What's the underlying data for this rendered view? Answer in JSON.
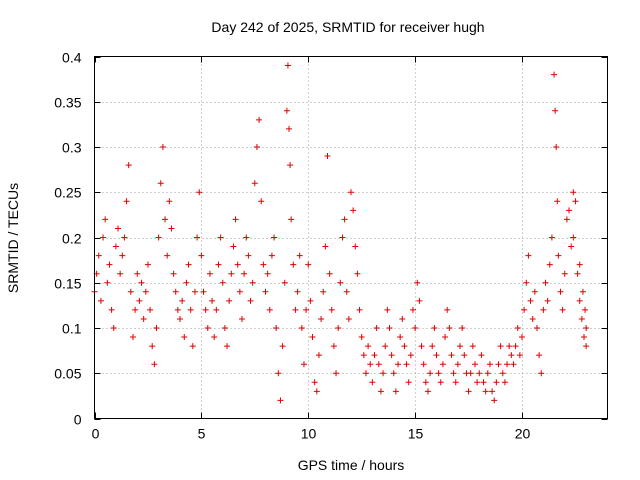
{
  "chart_data": {
    "type": "scatter",
    "title": "Day 242 of 2025, SRMTID for receiver hugh",
    "xlabel": "GPS time / hours",
    "ylabel": "SRMTID / TECUs",
    "xlim": [
      0,
      24
    ],
    "ylim": [
      0,
      0.4
    ],
    "xticks": [
      0,
      5,
      10,
      15,
      20
    ],
    "xtick_labels": [
      "0",
      "5",
      "10",
      "15",
      "20"
    ],
    "yticks": [
      0,
      0.05,
      0.1,
      0.15,
      0.2,
      0.25,
      0.3,
      0.35,
      0.4
    ],
    "ytick_labels": [
      "0",
      "0.05",
      "0.1",
      "0.15",
      "0.2",
      "0.25",
      "0.3",
      "0.35",
      "0.4"
    ],
    "grid": true,
    "marker": "plus",
    "color": "#e00000",
    "series": [
      {
        "name": "SRMTID",
        "points": [
          [
            0.0,
            0.14
          ],
          [
            0.1,
            0.16
          ],
          [
            0.2,
            0.18
          ],
          [
            0.3,
            0.13
          ],
          [
            0.4,
            0.2
          ],
          [
            0.5,
            0.22
          ],
          [
            0.6,
            0.15
          ],
          [
            0.7,
            0.17
          ],
          [
            0.8,
            0.12
          ],
          [
            0.9,
            0.1
          ],
          [
            1.0,
            0.19
          ],
          [
            1.1,
            0.21
          ],
          [
            1.2,
            0.16
          ],
          [
            1.3,
            0.18
          ],
          [
            1.4,
            0.2
          ],
          [
            1.5,
            0.24
          ],
          [
            1.6,
            0.28
          ],
          [
            1.7,
            0.14
          ],
          [
            1.8,
            0.09
          ],
          [
            1.9,
            0.12
          ],
          [
            2.0,
            0.16
          ],
          [
            2.1,
            0.13
          ],
          [
            2.2,
            0.15
          ],
          [
            2.3,
            0.11
          ],
          [
            2.4,
            0.14
          ],
          [
            2.5,
            0.17
          ],
          [
            2.6,
            0.12
          ],
          [
            2.7,
            0.08
          ],
          [
            2.8,
            0.06
          ],
          [
            2.9,
            0.1
          ],
          [
            3.0,
            0.2
          ],
          [
            3.1,
            0.26
          ],
          [
            3.2,
            0.3
          ],
          [
            3.3,
            0.22
          ],
          [
            3.4,
            0.18
          ],
          [
            3.5,
            0.24
          ],
          [
            3.6,
            0.21
          ],
          [
            3.7,
            0.16
          ],
          [
            3.8,
            0.14
          ],
          [
            3.9,
            0.12
          ],
          [
            4.0,
            0.11
          ],
          [
            4.1,
            0.13
          ],
          [
            4.2,
            0.09
          ],
          [
            4.3,
            0.15
          ],
          [
            4.4,
            0.17
          ],
          [
            4.5,
            0.12
          ],
          [
            4.6,
            0.08
          ],
          [
            4.7,
            0.14
          ],
          [
            4.8,
            0.2
          ],
          [
            4.9,
            0.25
          ],
          [
            5.0,
            0.18
          ],
          [
            5.1,
            0.14
          ],
          [
            5.2,
            0.12
          ],
          [
            5.3,
            0.1
          ],
          [
            5.4,
            0.16
          ],
          [
            5.5,
            0.13
          ],
          [
            5.6,
            0.09
          ],
          [
            5.7,
            0.12
          ],
          [
            5.8,
            0.17
          ],
          [
            5.9,
            0.2
          ],
          [
            6.0,
            0.15
          ],
          [
            6.1,
            0.1
          ],
          [
            6.2,
            0.08
          ],
          [
            6.3,
            0.13
          ],
          [
            6.4,
            0.16
          ],
          [
            6.5,
            0.19
          ],
          [
            6.6,
            0.22
          ],
          [
            6.7,
            0.17
          ],
          [
            6.8,
            0.14
          ],
          [
            6.9,
            0.11
          ],
          [
            7.0,
            0.16
          ],
          [
            7.1,
            0.2
          ],
          [
            7.2,
            0.18
          ],
          [
            7.3,
            0.13
          ],
          [
            7.4,
            0.15
          ],
          [
            7.5,
            0.26
          ],
          [
            7.6,
            0.3
          ],
          [
            7.7,
            0.33
          ],
          [
            7.8,
            0.24
          ],
          [
            7.9,
            0.17
          ],
          [
            8.0,
            0.14
          ],
          [
            8.1,
            0.16
          ],
          [
            8.2,
            0.12
          ],
          [
            8.3,
            0.18
          ],
          [
            8.4,
            0.2
          ],
          [
            8.5,
            0.1
          ],
          [
            8.6,
            0.05
          ],
          [
            8.7,
            0.02
          ],
          [
            8.8,
            0.08
          ],
          [
            8.9,
            0.15
          ],
          [
            9.0,
            0.34
          ],
          [
            9.05,
            0.39
          ],
          [
            9.1,
            0.32
          ],
          [
            9.15,
            0.28
          ],
          [
            9.2,
            0.22
          ],
          [
            9.3,
            0.17
          ],
          [
            9.4,
            0.12
          ],
          [
            9.5,
            0.14
          ],
          [
            9.6,
            0.18
          ],
          [
            9.7,
            0.1
          ],
          [
            9.8,
            0.06
          ],
          [
            9.9,
            0.12
          ],
          [
            10.0,
            0.17
          ],
          [
            10.1,
            0.13
          ],
          [
            10.2,
            0.09
          ],
          [
            10.3,
            0.04
          ],
          [
            10.4,
            0.03
          ],
          [
            10.5,
            0.07
          ],
          [
            10.6,
            0.11
          ],
          [
            10.7,
            0.14
          ],
          [
            10.8,
            0.19
          ],
          [
            10.9,
            0.29
          ],
          [
            11.0,
            0.16
          ],
          [
            11.1,
            0.12
          ],
          [
            11.2,
            0.08
          ],
          [
            11.3,
            0.05
          ],
          [
            11.4,
            0.1
          ],
          [
            11.5,
            0.15
          ],
          [
            11.6,
            0.2
          ],
          [
            11.7,
            0.22
          ],
          [
            11.8,
            0.14
          ],
          [
            11.9,
            0.11
          ],
          [
            12.0,
            0.25
          ],
          [
            12.1,
            0.23
          ],
          [
            12.2,
            0.19
          ],
          [
            12.3,
            0.16
          ],
          [
            12.4,
            0.12
          ],
          [
            12.5,
            0.09
          ],
          [
            12.6,
            0.07
          ],
          [
            12.7,
            0.05
          ],
          [
            12.8,
            0.08
          ],
          [
            12.9,
            0.06
          ],
          [
            13.0,
            0.04
          ],
          [
            13.1,
            0.07
          ],
          [
            13.2,
            0.1
          ],
          [
            13.3,
            0.06
          ],
          [
            13.4,
            0.03
          ],
          [
            13.5,
            0.05
          ],
          [
            13.6,
            0.08
          ],
          [
            13.7,
            0.12
          ],
          [
            13.8,
            0.1
          ],
          [
            13.9,
            0.07
          ],
          [
            14.0,
            0.05
          ],
          [
            14.1,
            0.03
          ],
          [
            14.2,
            0.06
          ],
          [
            14.3,
            0.09
          ],
          [
            14.4,
            0.11
          ],
          [
            14.5,
            0.08
          ],
          [
            14.6,
            0.06
          ],
          [
            14.7,
            0.04
          ],
          [
            14.8,
            0.07
          ],
          [
            14.9,
            0.12
          ],
          [
            15.0,
            0.1
          ],
          [
            15.1,
            0.15
          ],
          [
            15.2,
            0.13
          ],
          [
            15.3,
            0.08
          ],
          [
            15.4,
            0.06
          ],
          [
            15.5,
            0.04
          ],
          [
            15.6,
            0.03
          ],
          [
            15.7,
            0.05
          ],
          [
            15.8,
            0.08
          ],
          [
            15.9,
            0.1
          ],
          [
            16.0,
            0.07
          ],
          [
            16.1,
            0.05
          ],
          [
            16.2,
            0.04
          ],
          [
            16.3,
            0.06
          ],
          [
            16.4,
            0.09
          ],
          [
            16.5,
            0.12
          ],
          [
            16.6,
            0.1
          ],
          [
            16.7,
            0.07
          ],
          [
            16.8,
            0.05
          ],
          [
            16.9,
            0.04
          ],
          [
            17.0,
            0.06
          ],
          [
            17.1,
            0.08
          ],
          [
            17.2,
            0.1
          ],
          [
            17.3,
            0.07
          ],
          [
            17.4,
            0.05
          ],
          [
            17.5,
            0.03
          ],
          [
            17.6,
            0.05
          ],
          [
            17.7,
            0.08
          ],
          [
            17.8,
            0.06
          ],
          [
            17.9,
            0.04
          ],
          [
            18.0,
            0.05
          ],
          [
            18.1,
            0.07
          ],
          [
            18.2,
            0.04
          ],
          [
            18.3,
            0.03
          ],
          [
            18.4,
            0.05
          ],
          [
            18.5,
            0.06
          ],
          [
            18.6,
            0.03
          ],
          [
            18.7,
            0.02
          ],
          [
            18.8,
            0.04
          ],
          [
            18.9,
            0.06
          ],
          [
            19.0,
            0.08
          ],
          [
            19.1,
            0.05
          ],
          [
            19.2,
            0.04
          ],
          [
            19.3,
            0.06
          ],
          [
            19.4,
            0.08
          ],
          [
            19.5,
            0.07
          ],
          [
            19.6,
            0.06
          ],
          [
            19.7,
            0.08
          ],
          [
            19.8,
            0.1
          ],
          [
            19.9,
            0.07
          ],
          [
            20.0,
            0.09
          ],
          [
            20.1,
            0.12
          ],
          [
            20.2,
            0.15
          ],
          [
            20.3,
            0.18
          ],
          [
            20.4,
            0.13
          ],
          [
            20.5,
            0.11
          ],
          [
            20.6,
            0.14
          ],
          [
            20.7,
            0.1
          ],
          [
            20.8,
            0.07
          ],
          [
            20.9,
            0.05
          ],
          [
            21.0,
            0.12
          ],
          [
            21.1,
            0.15
          ],
          [
            21.2,
            0.13
          ],
          [
            21.3,
            0.17
          ],
          [
            21.4,
            0.2
          ],
          [
            21.5,
            0.38
          ],
          [
            21.55,
            0.34
          ],
          [
            21.6,
            0.3
          ],
          [
            21.65,
            0.24
          ],
          [
            21.7,
            0.18
          ],
          [
            21.8,
            0.14
          ],
          [
            21.9,
            0.12
          ],
          [
            22.0,
            0.16
          ],
          [
            22.1,
            0.22
          ],
          [
            22.2,
            0.23
          ],
          [
            22.3,
            0.19
          ],
          [
            22.4,
            0.2
          ],
          [
            22.5,
            0.24
          ],
          [
            22.6,
            0.16
          ],
          [
            22.7,
            0.13
          ],
          [
            22.8,
            0.11
          ],
          [
            22.9,
            0.09
          ],
          [
            23.0,
            0.1
          ],
          [
            22.95,
            0.12
          ],
          [
            23.0,
            0.08
          ],
          [
            22.85,
            0.14
          ],
          [
            22.7,
            0.17
          ],
          [
            22.4,
            0.25
          ]
        ]
      }
    ]
  }
}
